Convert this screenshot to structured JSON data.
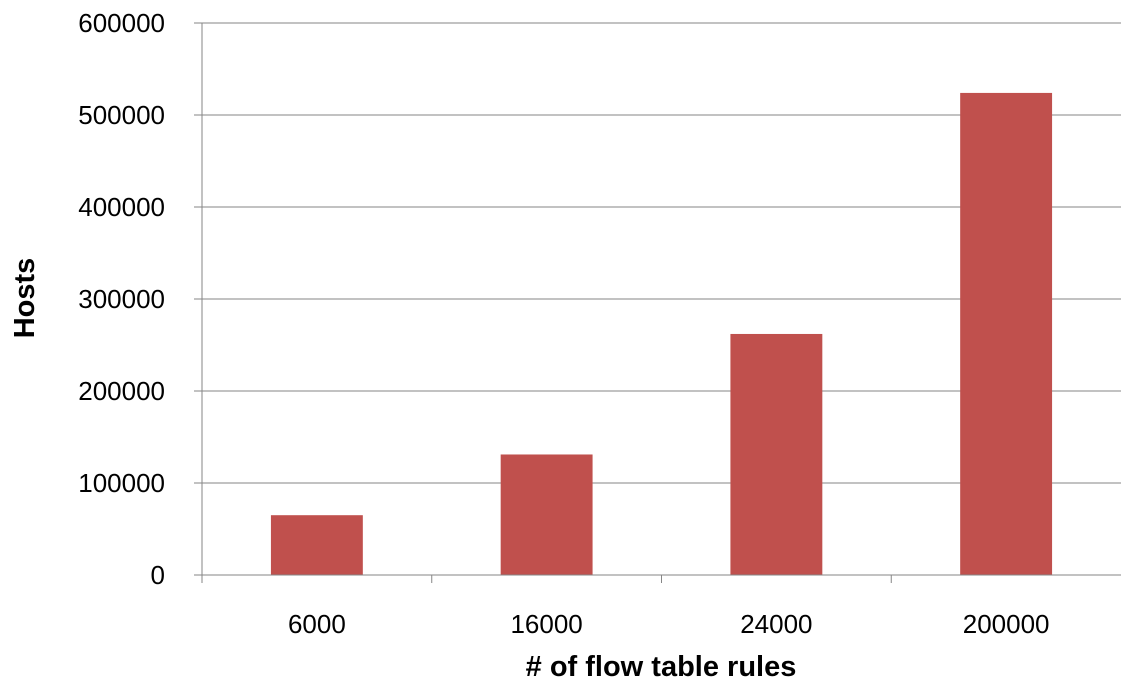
{
  "chart_data": {
    "type": "bar",
    "title": "",
    "xlabel": "# of flow table rules",
    "ylabel": "Hosts",
    "categories": [
      "6000",
      "16000",
      "24000",
      "200000"
    ],
    "values": [
      65000,
      131000,
      262000,
      524000
    ],
    "ylim": [
      0,
      600000
    ],
    "yticks": [
      "0",
      "100000",
      "200000",
      "300000",
      "400000",
      "500000",
      "600000"
    ],
    "grid": true,
    "legend": "none",
    "colors": {
      "bar": "#c0504d",
      "grid": "#868686",
      "axis": "#868686"
    }
  }
}
